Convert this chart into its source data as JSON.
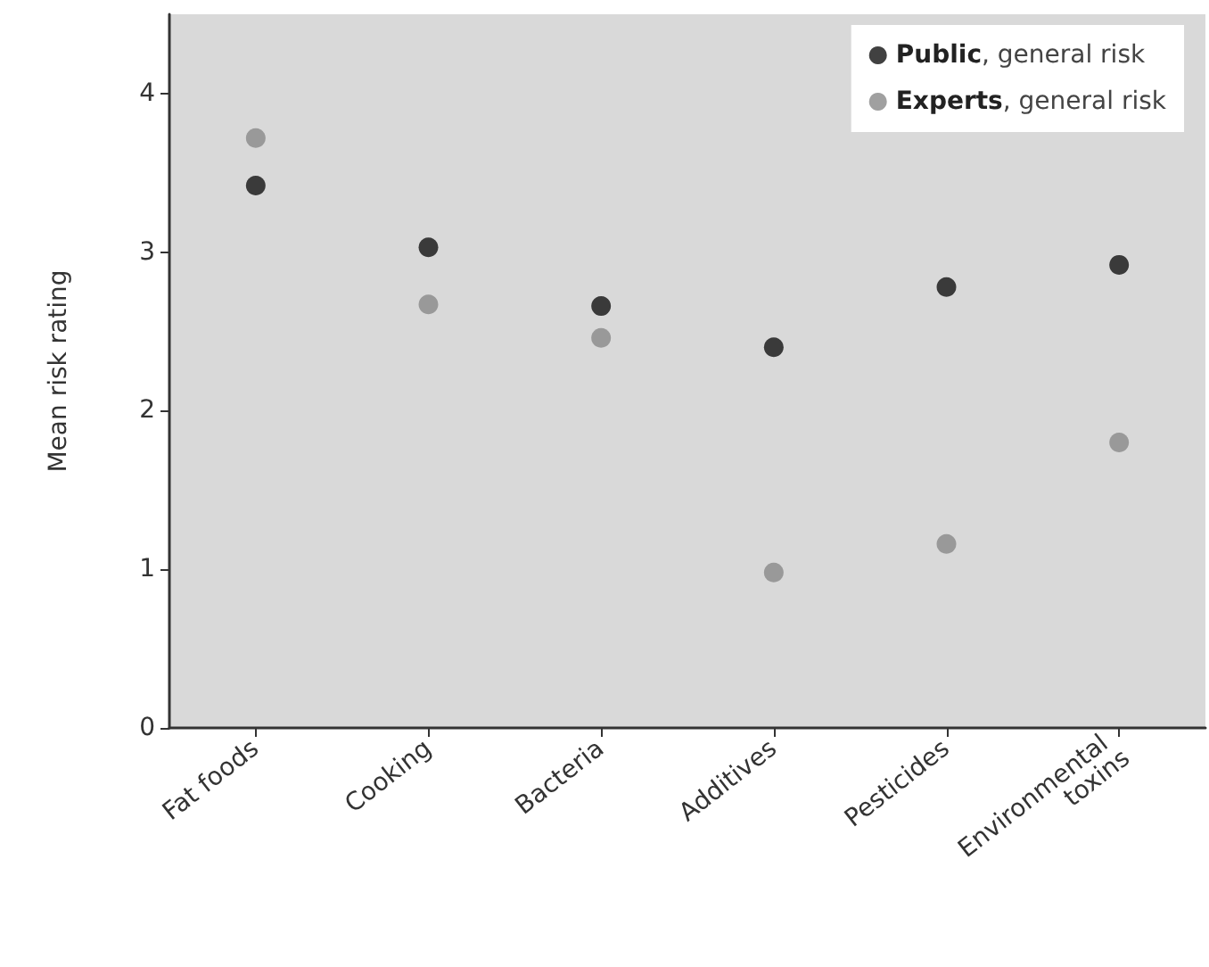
{
  "chart_data": {
    "type": "scatter",
    "ylabel": "Mean risk rating",
    "categories": [
      "Fat foods",
      "Cooking",
      "Bacteria",
      "Additives",
      "Pesticides",
      "Environmental toxins"
    ],
    "series": [
      {
        "name": "Public, general risk",
        "color": "#111111",
        "values": [
          3.42,
          3.03,
          2.66,
          2.4,
          2.78,
          2.92
        ]
      },
      {
        "name": "Experts, general risk",
        "color": "#888888",
        "values": [
          3.72,
          2.67,
          2.46,
          0.98,
          1.16,
          1.8
        ]
      }
    ],
    "ylim": [
      0,
      4.5
    ],
    "yticks": [
      0,
      1,
      2,
      3,
      4
    ],
    "grid": false,
    "legend": "top right",
    "marker": "circle"
  }
}
